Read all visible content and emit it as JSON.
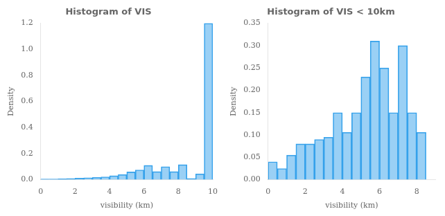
{
  "chart_data": [
    {
      "type": "histogram",
      "title": "Histogram of VIS",
      "xlabel": "visibility (km)",
      "ylabel": "Density",
      "bins": [
        0.0,
        0.5,
        1.0,
        1.5,
        2.0,
        2.5,
        3.0,
        3.5,
        4.0,
        4.5,
        5.0,
        5.5,
        6.0,
        6.5,
        7.0,
        7.5,
        8.0,
        8.5,
        9.0,
        9.5,
        10.0
      ],
      "values": [
        0.005,
        0.005,
        0.007,
        0.01,
        0.012,
        0.015,
        0.018,
        0.022,
        0.03,
        0.04,
        0.06,
        0.075,
        0.11,
        0.062,
        0.1,
        0.062,
        0.115,
        0.01,
        0.045,
        1.2
      ],
      "xlim": [
        0,
        10
      ],
      "xticks": [
        0,
        2,
        4,
        6,
        8,
        10
      ],
      "ylim": [
        0,
        1.2
      ],
      "yticks": [
        {
          "value": 0,
          "label": "0.0"
        },
        0.2,
        0.4,
        0.6,
        0.8,
        {
          "value": 1,
          "label": "1.0"
        },
        1.2
      ],
      "grid": false
    },
    {
      "type": "histogram",
      "title": "Histogram of VIS < 10km",
      "xlabel": "visibility (km)",
      "ylabel": "Density",
      "bins": [
        0.0,
        0.5,
        1.0,
        1.5,
        2.0,
        2.5,
        3.0,
        3.5,
        4.0,
        4.5,
        5.0,
        5.5,
        6.0,
        6.5,
        7.0,
        7.5,
        8.0,
        8.5,
        9.0
      ],
      "values": [
        0.04,
        0.025,
        0.055,
        0.08,
        0.08,
        0.09,
        0.095,
        0.15,
        0.106,
        0.15,
        0.23,
        0.31,
        0.25,
        0.15,
        0.3,
        0.15,
        0.106,
        0.0
      ],
      "xlim": [
        0,
        9.0
      ],
      "xticks": [
        0,
        2,
        4,
        6,
        8
      ],
      "ylim": [
        0,
        0.35
      ],
      "yticks": [
        {
          "value": 0,
          "label": "0.00"
        },
        0.05,
        {
          "value": 0.1,
          "label": "0.10"
        },
        0.15,
        {
          "value": 0.2,
          "label": "0.20"
        },
        0.25,
        {
          "value": 0.3,
          "label": "0.30"
        },
        0.35
      ],
      "grid": false
    }
  ]
}
